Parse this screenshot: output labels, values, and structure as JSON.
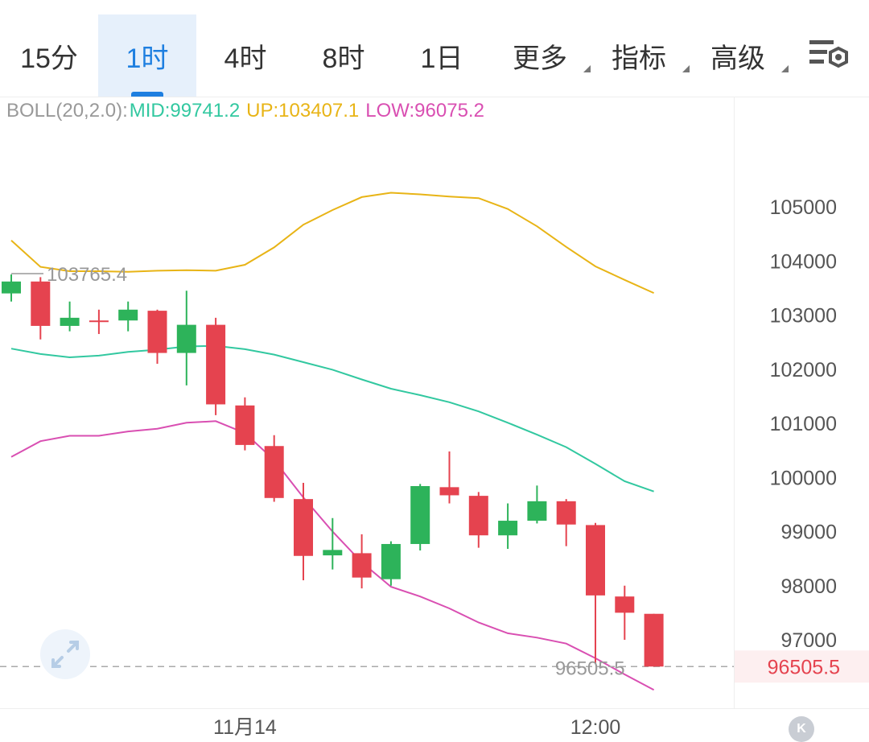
{
  "tabs": {
    "items": [
      {
        "label": "15分",
        "active": false,
        "dropdown": false
      },
      {
        "label": "1时",
        "active": true,
        "dropdown": false
      },
      {
        "label": "4时",
        "active": false,
        "dropdown": false
      },
      {
        "label": "8时",
        "active": false,
        "dropdown": false
      },
      {
        "label": "1日",
        "active": false,
        "dropdown": false
      },
      {
        "label": "更多",
        "active": false,
        "dropdown": true
      },
      {
        "label": "指标",
        "active": false,
        "dropdown": true
      },
      {
        "label": "高级",
        "active": false,
        "dropdown": true
      }
    ],
    "settings_icon": "settings-sliders-icon"
  },
  "legend": {
    "name": "BOLL(20,2.0):",
    "mid_label": "MID:99741.2",
    "up_label": "UP:103407.1",
    "low_label": "LOW:96075.2"
  },
  "colors": {
    "up_candle": "#2db35a",
    "down_candle": "#e5434f",
    "mid": "#32c8a0",
    "up": "#e8b416",
    "low": "#d94fb2",
    "legend_name": "#999999",
    "price_tag": "#e5434f"
  },
  "chart_data": {
    "type": "candlestick",
    "x_tick_labels": [
      {
        "label": "11月14",
        "index": 8
      },
      {
        "label": "12:00",
        "index": 20
      }
    ],
    "y_ticks": [
      97000,
      98000,
      99000,
      100000,
      101000,
      102000,
      103000,
      104000,
      105000
    ],
    "ylim": [
      95800,
      106000
    ],
    "candles": [
      {
        "o": 103400,
        "h": 103750,
        "l": 103250,
        "c": 103620
      },
      {
        "o": 103620,
        "h": 103700,
        "l": 102550,
        "c": 102800
      },
      {
        "o": 102800,
        "h": 103250,
        "l": 102700,
        "c": 102950
      },
      {
        "o": 102900,
        "h": 103100,
        "l": 102650,
        "c": 102880
      },
      {
        "o": 102900,
        "h": 103250,
        "l": 102700,
        "c": 103100
      },
      {
        "o": 103080,
        "h": 103100,
        "l": 102100,
        "c": 102300
      },
      {
        "o": 102300,
        "h": 103450,
        "l": 101700,
        "c": 102820
      },
      {
        "o": 102820,
        "h": 102950,
        "l": 101150,
        "c": 101350
      },
      {
        "o": 101330,
        "h": 101480,
        "l": 100500,
        "c": 100600
      },
      {
        "o": 100580,
        "h": 100780,
        "l": 99550,
        "c": 99620
      },
      {
        "o": 99600,
        "h": 99900,
        "l": 98100,
        "c": 98550
      },
      {
        "o": 98560,
        "h": 99250,
        "l": 98300,
        "c": 98660
      },
      {
        "o": 98600,
        "h": 98950,
        "l": 97950,
        "c": 98150
      },
      {
        "o": 98120,
        "h": 98820,
        "l": 98000,
        "c": 98770
      },
      {
        "o": 98770,
        "h": 99880,
        "l": 98650,
        "c": 99840
      },
      {
        "o": 99820,
        "h": 100480,
        "l": 99520,
        "c": 99670
      },
      {
        "o": 99660,
        "h": 99730,
        "l": 98700,
        "c": 98930
      },
      {
        "o": 98930,
        "h": 99520,
        "l": 98680,
        "c": 99200
      },
      {
        "o": 99200,
        "h": 99850,
        "l": 99150,
        "c": 99560
      },
      {
        "o": 99560,
        "h": 99600,
        "l": 98730,
        "c": 99130
      },
      {
        "o": 99120,
        "h": 99160,
        "l": 96560,
        "c": 97820
      },
      {
        "o": 97800,
        "h": 98000,
        "l": 97000,
        "c": 97500
      },
      {
        "o": 97480,
        "h": 97480,
        "l": 96505.5,
        "c": 96505.5
      }
    ],
    "boll": {
      "params": "BOLL(20,2.0)",
      "mid": [
        102380,
        102280,
        102220,
        102250,
        102320,
        102360,
        102420,
        102430,
        102370,
        102270,
        102130,
        101990,
        101810,
        101640,
        101520,
        101390,
        101220,
        101010,
        100790,
        100560,
        100250,
        99930,
        99741.2
      ],
      "up": [
        104380,
        103890,
        103810,
        103810,
        103800,
        103820,
        103830,
        103820,
        103930,
        104250,
        104670,
        104940,
        105180,
        105260,
        105230,
        105190,
        105160,
        104960,
        104640,
        104260,
        103900,
        103650,
        103407.1
      ],
      "low": [
        100380,
        100670,
        100770,
        100770,
        100850,
        100900,
        101010,
        101040,
        100820,
        100320,
        99630,
        99000,
        98430,
        97980,
        97800,
        97580,
        97320,
        97120,
        97040,
        96930,
        96660,
        96360,
        96075.2
      ]
    },
    "high_marker": {
      "label": "103765.4",
      "value": 103765.4,
      "index": 0
    },
    "low_marker": {
      "label": "96505.5",
      "value": 96505.5,
      "index": 22
    },
    "last_price": {
      "label": "96505.5",
      "value": 96505.5
    }
  }
}
